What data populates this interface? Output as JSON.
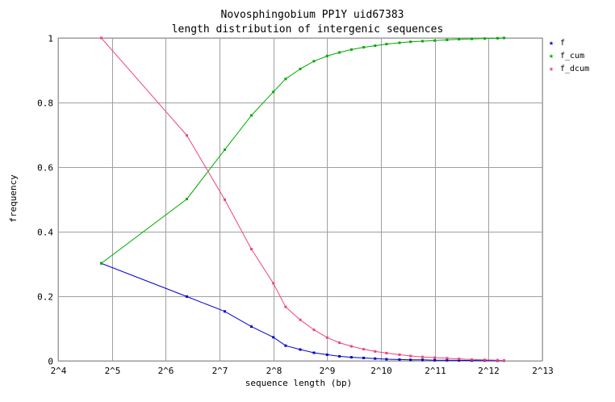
{
  "chart_data": {
    "type": "line",
    "title": "Novosphingobium PP1Y uid67383",
    "subtitle": "length distribution of intergenic sequences",
    "xlabel": "sequence length (bp)",
    "ylabel": "frequency",
    "x_scale": "log2",
    "xlim": [
      16,
      8192
    ],
    "ylim": [
      0,
      1
    ],
    "x_ticks": [
      16,
      32,
      64,
      128,
      256,
      512,
      1024,
      2048,
      4096,
      8192
    ],
    "x_tick_labels": [
      "2^4",
      "2^5",
      "2^6",
      "2^7",
      "2^8",
      "2^9",
      "2^10",
      "2^11",
      "2^12",
      "2^13"
    ],
    "y_ticks": [
      0,
      0.2,
      0.4,
      0.6,
      0.8,
      1
    ],
    "y_tick_labels": [
      "0",
      "0.2",
      "0.4",
      "0.6",
      "0.8",
      "1"
    ],
    "grid": true,
    "legend_position": "right",
    "series": [
      {
        "name": "f",
        "color": "#0000cc",
        "points": [
          [
            27.9,
            0.302
          ],
          [
            84,
            0.199
          ],
          [
            137,
            0.153
          ],
          [
            193,
            0.106
          ],
          [
            256,
            0.073
          ],
          [
            300,
            0.047
          ],
          [
            362,
            0.035
          ],
          [
            432,
            0.025
          ],
          [
            512,
            0.019
          ],
          [
            600,
            0.014
          ],
          [
            700,
            0.011
          ],
          [
            820,
            0.009
          ],
          [
            950,
            0.007
          ],
          [
            1100,
            0.005
          ],
          [
            1300,
            0.004
          ],
          [
            1500,
            0.003
          ],
          [
            1750,
            0.003
          ],
          [
            2048,
            0.002
          ],
          [
            2400,
            0.002
          ],
          [
            2800,
            0.0015
          ],
          [
            3300,
            0.001
          ],
          [
            3900,
            0.001
          ],
          [
            4600,
            0.0005
          ],
          [
            5000,
            0.0005
          ]
        ]
      },
      {
        "name": "f_cum",
        "color": "#00aa00",
        "points": [
          [
            27.9,
            0.302
          ],
          [
            84,
            0.501
          ],
          [
            137,
            0.654
          ],
          [
            193,
            0.76
          ],
          [
            256,
            0.833
          ],
          [
            300,
            0.873
          ],
          [
            362,
            0.904
          ],
          [
            432,
            0.928
          ],
          [
            512,
            0.944
          ],
          [
            600,
            0.955
          ],
          [
            700,
            0.964
          ],
          [
            820,
            0.971
          ],
          [
            950,
            0.976
          ],
          [
            1100,
            0.981
          ],
          [
            1300,
            0.985
          ],
          [
            1500,
            0.988
          ],
          [
            1750,
            0.99
          ],
          [
            2048,
            0.992
          ],
          [
            2400,
            0.994
          ],
          [
            2800,
            0.996
          ],
          [
            3300,
            0.997
          ],
          [
            3900,
            0.998
          ],
          [
            4600,
            0.999
          ],
          [
            5000,
            1
          ]
        ]
      },
      {
        "name": "f_dcum",
        "color": "#ee4477",
        "points": [
          [
            27.9,
            1
          ],
          [
            84,
            0.698
          ],
          [
            137,
            0.499
          ],
          [
            193,
            0.346
          ],
          [
            256,
            0.24
          ],
          [
            300,
            0.167
          ],
          [
            362,
            0.127
          ],
          [
            432,
            0.096
          ],
          [
            512,
            0.072
          ],
          [
            600,
            0.056
          ],
          [
            700,
            0.045
          ],
          [
            820,
            0.036
          ],
          [
            950,
            0.029
          ],
          [
            1100,
            0.024
          ],
          [
            1300,
            0.019
          ],
          [
            1500,
            0.015
          ],
          [
            1750,
            0.012
          ],
          [
            2048,
            0.01
          ],
          [
            2400,
            0.008
          ],
          [
            2800,
            0.006
          ],
          [
            3300,
            0.004
          ],
          [
            3900,
            0.003
          ],
          [
            4600,
            0.002
          ],
          [
            5000,
            0.001
          ]
        ]
      }
    ]
  }
}
